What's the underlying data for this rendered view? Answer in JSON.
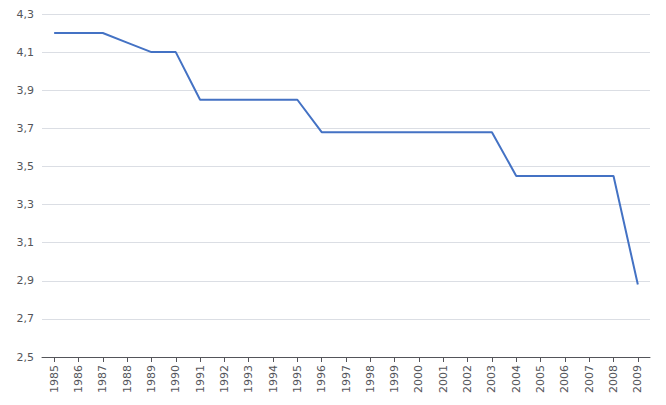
{
  "chart_data": {
    "type": "line",
    "x": [
      1985,
      1986,
      1987,
      1988,
      1989,
      1990,
      1991,
      1992,
      1993,
      1994,
      1995,
      1996,
      1997,
      1998,
      1999,
      2000,
      2001,
      2002,
      2003,
      2004,
      2005,
      2006,
      2007,
      2008,
      2009
    ],
    "values": [
      4.2,
      4.2,
      4.2,
      4.15,
      4.1,
      4.1,
      3.85,
      3.85,
      3.85,
      3.85,
      3.85,
      3.68,
      3.68,
      3.68,
      3.68,
      3.68,
      3.68,
      3.68,
      3.68,
      3.45,
      3.45,
      3.45,
      3.45,
      3.45,
      2.88
    ],
    "color": "#4472C4",
    "xlim": [
      1984.5,
      2009.5
    ],
    "xticks": [
      1985,
      1986,
      1987,
      1988,
      1989,
      1990,
      1991,
      1992,
      1993,
      1994,
      1995,
      1996,
      1997,
      1998,
      1999,
      2000,
      2001,
      2002,
      2003,
      2004,
      2005,
      2006,
      2007,
      2008,
      2009
    ],
    "ylim": [
      2.5,
      4.3
    ],
    "yticks": [
      {
        "value": 2.5,
        "label": "2,5"
      },
      {
        "value": 2.7,
        "label": "2,7"
      },
      {
        "value": 2.9,
        "label": "2,9"
      },
      {
        "value": 3.1,
        "label": "3,1"
      },
      {
        "value": 3.3,
        "label": "3,3"
      },
      {
        "value": 3.5,
        "label": "3,5"
      },
      {
        "value": 3.7,
        "label": "3,7"
      },
      {
        "value": 3.9,
        "label": "3,9"
      },
      {
        "value": 4.1,
        "label": "4,1"
      },
      {
        "value": 4.3,
        "label": "4,3"
      }
    ],
    "grid": true
  }
}
